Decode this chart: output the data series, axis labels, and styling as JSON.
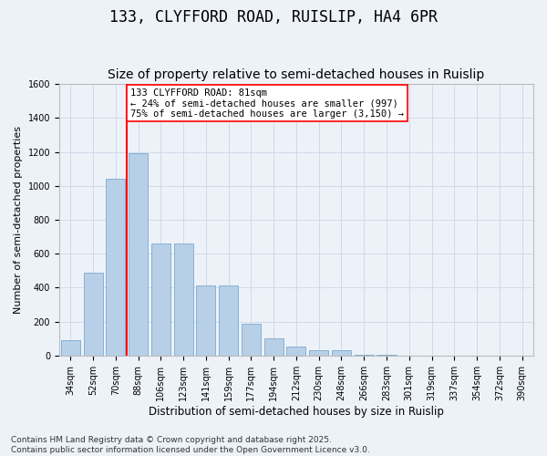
{
  "title": "133, CLYFFORD ROAD, RUISLIP, HA4 6PR",
  "subtitle": "Size of property relative to semi-detached houses in Ruislip",
  "xlabel": "Distribution of semi-detached houses by size in Ruislip",
  "ylabel": "Number of semi-detached properties",
  "categories": [
    "34sqm",
    "52sqm",
    "70sqm",
    "88sqm",
    "106sqm",
    "123sqm",
    "141sqm",
    "159sqm",
    "177sqm",
    "194sqm",
    "212sqm",
    "230sqm",
    "248sqm",
    "266sqm",
    "283sqm",
    "301sqm",
    "319sqm",
    "337sqm",
    "354sqm",
    "372sqm",
    "390sqm"
  ],
  "values": [
    90,
    490,
    1040,
    1190,
    660,
    660,
    415,
    415,
    185,
    100,
    55,
    30,
    30,
    5,
    5,
    0,
    0,
    0,
    0,
    0,
    0
  ],
  "bar_color": "#b8cfe8",
  "bar_edge_color": "#7aaad0",
  "vline_x": 2.5,
  "vline_color": "red",
  "annotation_text": "133 CLYFFORD ROAD: 81sqm\n← 24% of semi-detached houses are smaller (997)\n75% of semi-detached houses are larger (3,150) →",
  "annotation_box_color": "white",
  "annotation_box_edge": "red",
  "ylim": [
    0,
    1600
  ],
  "yticks": [
    0,
    200,
    400,
    600,
    800,
    1000,
    1200,
    1400,
    1600
  ],
  "grid_color": "#ccd6e8",
  "bg_color": "#edf2f9",
  "footer": "Contains HM Land Registry data © Crown copyright and database right 2025.\nContains public sector information licensed under the Open Government Licence v3.0.",
  "title_fontsize": 12,
  "subtitle_fontsize": 10,
  "xlabel_fontsize": 8.5,
  "ylabel_fontsize": 8,
  "tick_fontsize": 7,
  "footer_fontsize": 6.5,
  "annot_fontsize": 7.5
}
